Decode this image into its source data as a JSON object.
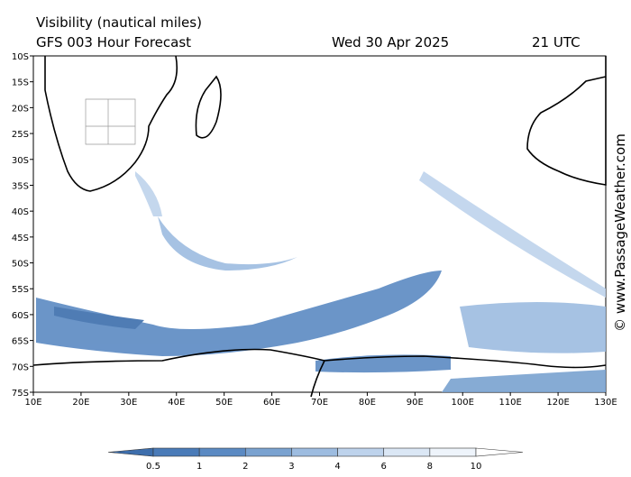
{
  "header": {
    "title": "Visibility (nautical miles)",
    "model": "GFS 003 Hour Forecast",
    "date": "Wed 30 Apr 2025",
    "time": "21 UTC"
  },
  "map": {
    "lat_labels": [
      "10S",
      "15S",
      "20S",
      "25S",
      "30S",
      "35S",
      "40S",
      "45S",
      "50S",
      "55S",
      "60S",
      "65S",
      "70S",
      "75S"
    ],
    "lon_labels": [
      "10E",
      "20E",
      "30E",
      "40E",
      "50E",
      "60E",
      "70E",
      "80E",
      "90E",
      "100E",
      "110E",
      "120E",
      "130E"
    ]
  },
  "legend": {
    "labels": [
      "0.5",
      "1",
      "2",
      "3",
      "4",
      "6",
      "8",
      "10"
    ],
    "colors": [
      "#3d6eac",
      "#4a7bb8",
      "#5b8ac3",
      "#7aa2d0",
      "#9dbce0",
      "#bed3ec",
      "#dbe7f5",
      "#eef4fb",
      "#ffffff"
    ]
  },
  "credit": "© www.PassageWeather.com"
}
